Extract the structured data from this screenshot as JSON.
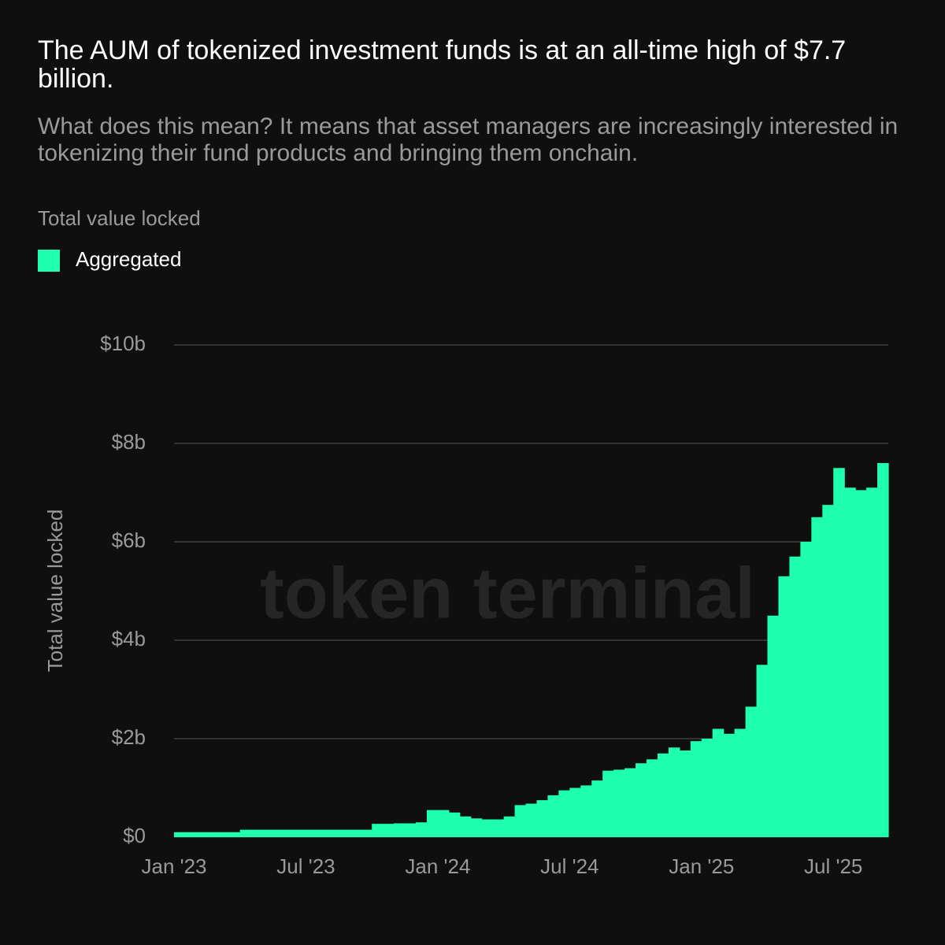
{
  "chart_data": {
    "type": "bar",
    "title": "The AUM of tokenized investment funds is at an all-time high of $7.7 billion.",
    "subtitle": "What does this mean? It means that asset managers are increasingly interested in tokenizing their fund products and bringing them onchain.",
    "legend_title": "Total value locked",
    "ylabel": "Total value locked",
    "watermark": "token terminal",
    "categories": [
      "Jan '23",
      null,
      null,
      null,
      null,
      null,
      null,
      null,
      null,
      null,
      null,
      null,
      "Jul '23",
      null,
      null,
      null,
      null,
      null,
      null,
      null,
      null,
      null,
      null,
      null,
      "Jan '24",
      null,
      null,
      null,
      null,
      null,
      null,
      null,
      null,
      null,
      null,
      null,
      "Jul '24",
      null,
      null,
      null,
      null,
      null,
      null,
      null,
      null,
      null,
      null,
      null,
      "Jan '25",
      null,
      null,
      null,
      null,
      null,
      null,
      null,
      null,
      null,
      null,
      null,
      "Jul '25",
      null,
      null,
      null,
      null
    ],
    "series": [
      {
        "name": "Aggregated",
        "color": "#1effb0",
        "values": [
          0.1,
          0.1,
          0.1,
          0.1,
          0.1,
          0.1,
          0.15,
          0.15,
          0.15,
          0.15,
          0.15,
          0.15,
          0.15,
          0.15,
          0.15,
          0.15,
          0.15,
          0.15,
          0.27,
          0.27,
          0.28,
          0.28,
          0.3,
          0.55,
          0.55,
          0.5,
          0.42,
          0.38,
          0.36,
          0.36,
          0.42,
          0.65,
          0.68,
          0.75,
          0.85,
          0.95,
          1.0,
          1.05,
          1.15,
          1.35,
          1.37,
          1.4,
          1.5,
          1.58,
          1.7,
          1.82,
          1.76,
          1.95,
          2.0,
          2.2,
          2.1,
          2.2,
          2.65,
          3.5,
          4.5,
          5.3,
          5.7,
          6.0,
          6.5,
          6.75,
          7.5,
          7.1,
          7.05,
          7.1,
          7.6
        ]
      }
    ],
    "ylim": [
      0,
      10
    ],
    "yticks": [
      {
        "value": 0,
        "label": "$0"
      },
      {
        "value": 2,
        "label": "$2b"
      },
      {
        "value": 4,
        "label": "$4b"
      },
      {
        "value": 6,
        "label": "$6b"
      },
      {
        "value": 8,
        "label": "$8b"
      },
      {
        "value": 10,
        "label": "$10b"
      }
    ],
    "grid": true
  }
}
